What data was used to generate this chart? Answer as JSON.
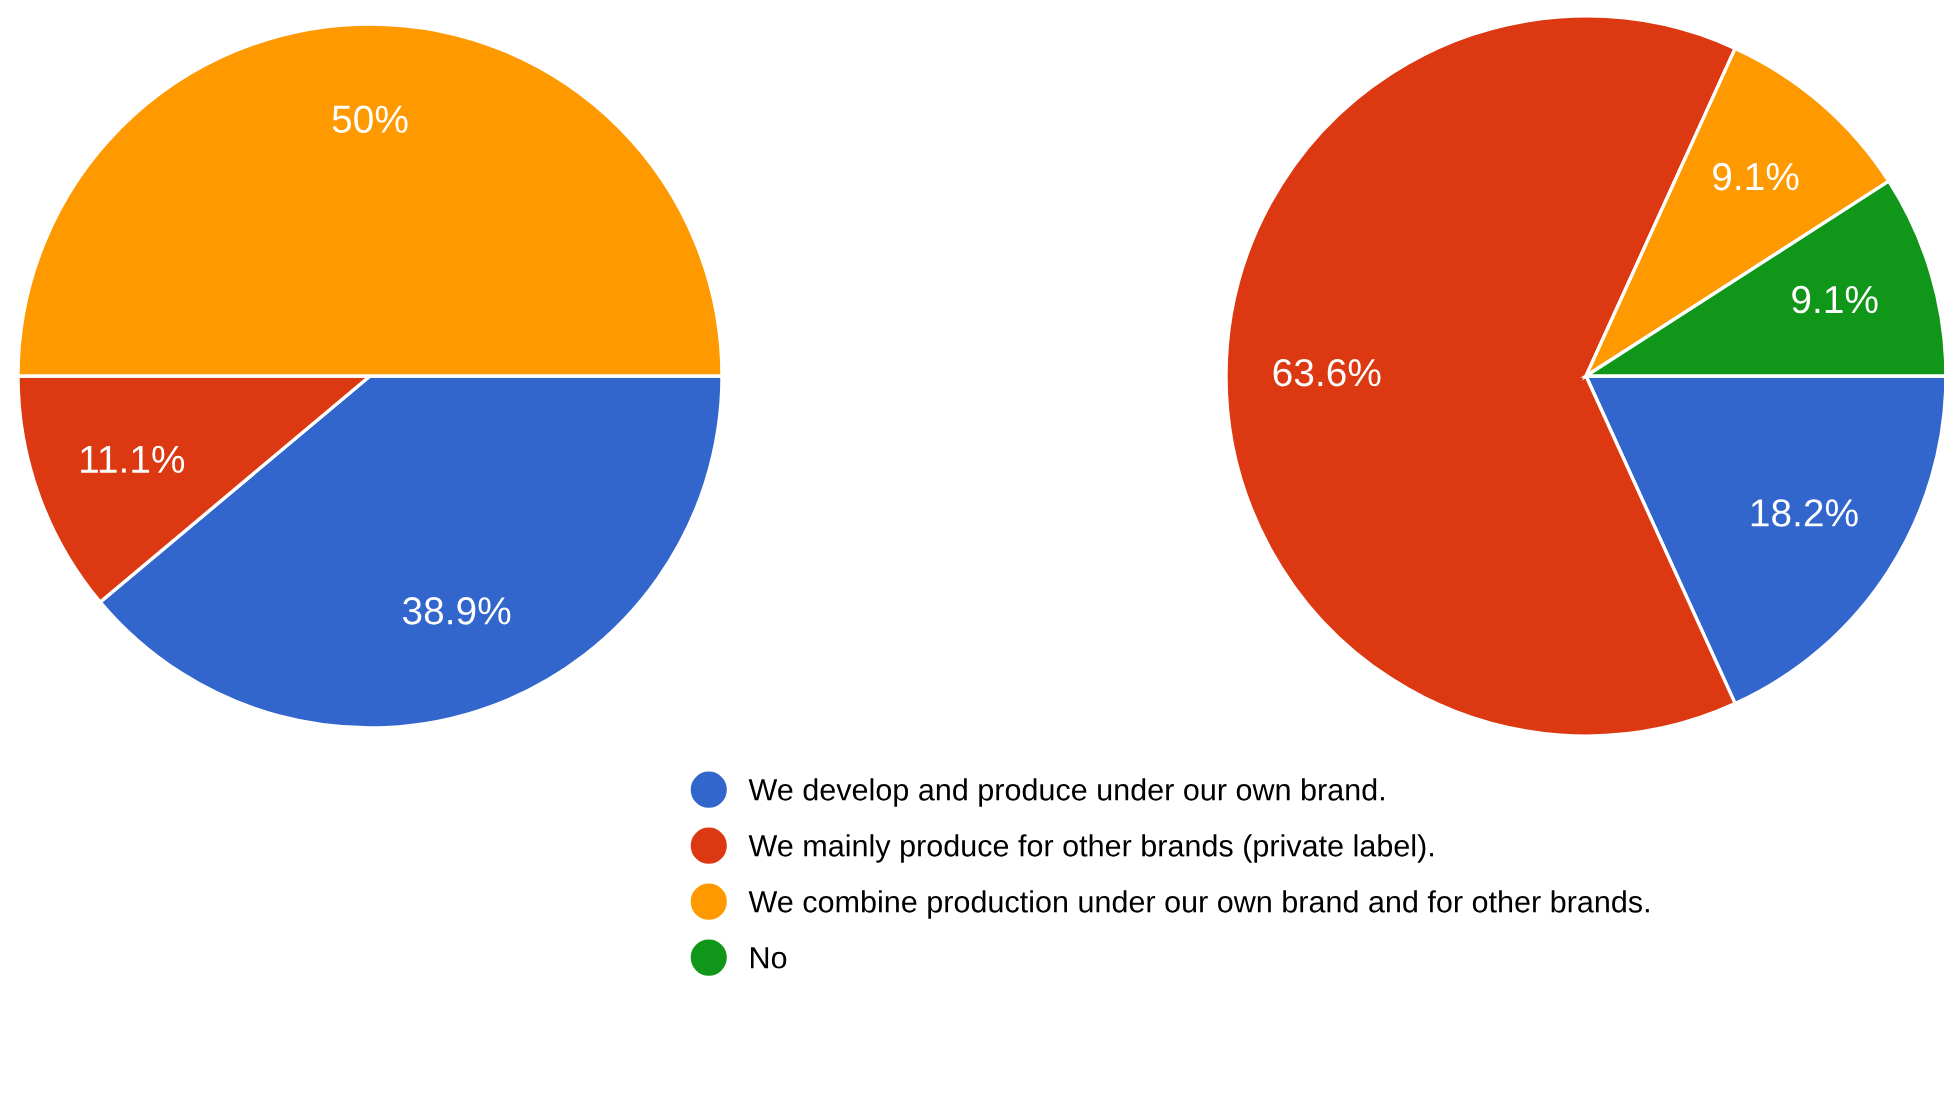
{
  "chart_data": [
    {
      "type": "pie",
      "categories": [
        null,
        null,
        null
      ],
      "values": [
        38.9,
        11.1,
        50
      ],
      "colors": [
        "#3366cc",
        "#dc3912",
        "#ff9900"
      ],
      "value_labels": [
        "38.9%",
        "11.1%",
        "50%"
      ]
    },
    {
      "type": "pie",
      "categories": [
        "We develop and produce under our own brand.",
        "We mainly produce for other brands (private label).",
        "We combine production under our own brand and for other brands.",
        "No"
      ],
      "values": [
        18.2,
        63.6,
        9.1,
        9.1
      ],
      "colors": [
        "#3366cc",
        "#dc3912",
        "#ff9900",
        "#109618"
      ],
      "value_labels": [
        "18.2%",
        "63.6%",
        "9.1%",
        "9.1%"
      ],
      "legend": "bottom"
    }
  ]
}
